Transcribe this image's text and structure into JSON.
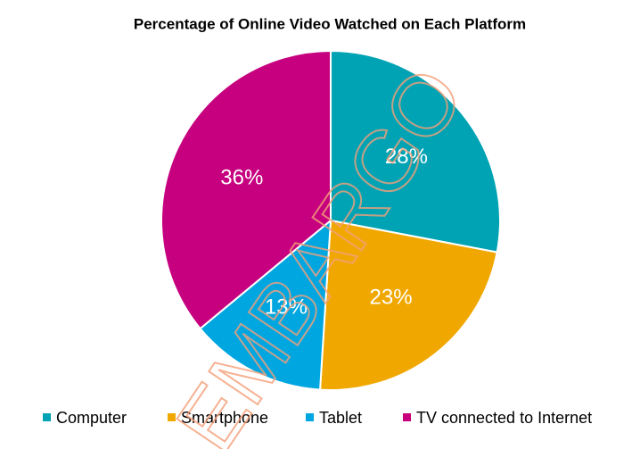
{
  "chart_data": {
    "type": "pie",
    "title": "Percentage of Online Video Watched on Each Platform",
    "categories": [
      "Computer",
      "Smartphone",
      "Tablet",
      "TV connected to Internet"
    ],
    "values": [
      28,
      23,
      13,
      36
    ],
    "value_labels": [
      "28%",
      "23%",
      "13%",
      "36%"
    ],
    "colors": [
      "#00a3b4",
      "#f0a800",
      "#00a6e0",
      "#c6007e"
    ],
    "legend": "bottom",
    "watermark": "EMBARGO"
  }
}
